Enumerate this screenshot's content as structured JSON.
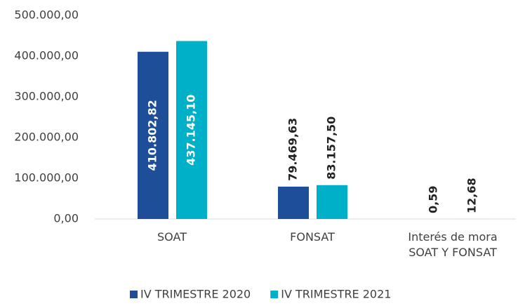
{
  "chart_data": {
    "type": "bar",
    "categories": [
      "SOAT",
      "FONSAT",
      "Interés de mora SOAT Y FONSAT"
    ],
    "series": [
      {
        "name": "IV TRIMESTRE 2020",
        "color": "#1f4e99",
        "values": [
          410802.82,
          79469.63,
          0.59
        ],
        "value_labels": [
          "410.802,82",
          "79.469,63",
          "0,59"
        ]
      },
      {
        "name": "IV TRIMESTRE 2021",
        "color": "#00b0c8",
        "values": [
          437145.1,
          83157.5,
          12.68
        ],
        "value_labels": [
          "437.145,10",
          "83.157,50",
          "12,68"
        ]
      }
    ],
    "ylim": [
      0,
      500000
    ],
    "yticks": [
      {
        "value": 0,
        "label": "0,00"
      },
      {
        "value": 100000,
        "label": "100.000,00"
      },
      {
        "value": 200000,
        "label": "200.000,00"
      },
      {
        "value": 300000,
        "label": "300.000,00"
      },
      {
        "value": 400000,
        "label": "400.000,00"
      },
      {
        "value": 500000,
        "label": "500.000,00"
      }
    ],
    "grid": false,
    "legend": "bottom"
  }
}
